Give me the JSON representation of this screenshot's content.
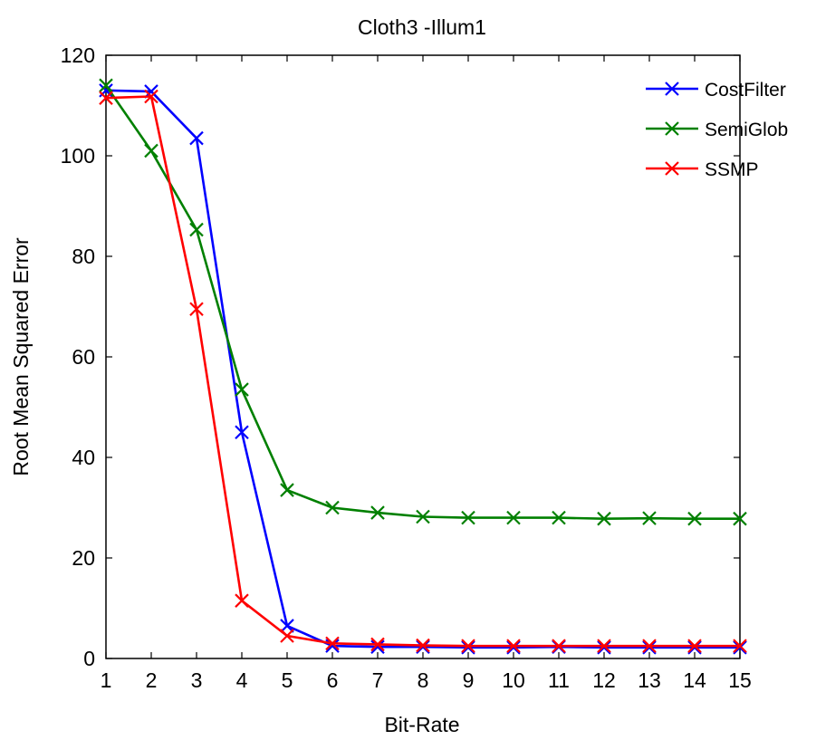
{
  "chart_data": {
    "type": "line",
    "title": "Cloth3 -Illum1",
    "xlabel": "Bit-Rate",
    "ylabel": "Root Mean Squared Error",
    "xlim": [
      1,
      15
    ],
    "ylim": [
      0,
      120
    ],
    "xticks": [
      1,
      2,
      3,
      4,
      5,
      6,
      7,
      8,
      9,
      10,
      11,
      12,
      13,
      14,
      15
    ],
    "yticks": [
      0,
      20,
      40,
      60,
      80,
      100,
      120
    ],
    "grid": false,
    "legend_position": "top-right",
    "marker": "x",
    "x": [
      1,
      2,
      3,
      4,
      5,
      6,
      7,
      8,
      9,
      10,
      11,
      12,
      13,
      14,
      15
    ],
    "series": [
      {
        "name": "CostFilter",
        "color": "#0000ff",
        "values": [
          113,
          112.8,
          103.5,
          45,
          6.5,
          2.5,
          2.3,
          2.3,
          2.2,
          2.2,
          2.3,
          2.2,
          2.2,
          2.2,
          2.2
        ]
      },
      {
        "name": "SemiGlob",
        "color": "#008000",
        "values": [
          114,
          101,
          85.3,
          53.5,
          33.5,
          30,
          29,
          28.2,
          28,
          28,
          28,
          27.8,
          27.9,
          27.8,
          27.8
        ]
      },
      {
        "name": "SSMP",
        "color": "#ff0000",
        "values": [
          111.5,
          111.8,
          69.5,
          11.5,
          4.5,
          3,
          2.8,
          2.6,
          2.5,
          2.5,
          2.5,
          2.5,
          2.5,
          2.5,
          2.5
        ]
      }
    ]
  }
}
